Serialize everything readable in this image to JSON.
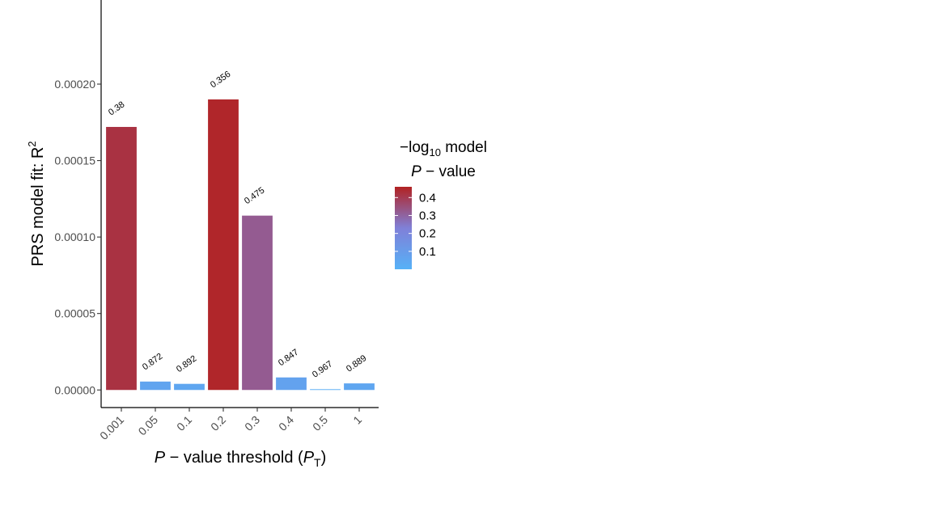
{
  "chart_data": {
    "type": "bar",
    "categories": [
      "0.001",
      "0.05",
      "0.1",
      "0.2",
      "0.3",
      "0.4",
      "0.5",
      "1"
    ],
    "values": [
      0.000172,
      5.5e-06,
      4e-06,
      0.00019,
      0.000114,
      8.2e-06,
      5e-07,
      4.3e-06
    ],
    "bar_labels": [
      "0.38",
      "0.872",
      "0.892",
      "0.356",
      "0.475",
      "0.847",
      "0.967",
      "0.889"
    ],
    "color_values": [
      0.42,
      0.06,
      0.05,
      0.45,
      0.32,
      0.07,
      0.015,
      0.05
    ],
    "ylim": [
      -1.15e-05,
      0.000255
    ],
    "yticks": [
      0,
      5e-05,
      0.0001,
      0.00015,
      0.0002
    ],
    "ytick_labels": [
      "0.00000",
      "0.00005",
      "0.00010",
      "0.00015",
      "0.00020"
    ],
    "ylabel_main": "PRS model fit:  R",
    "ylabel_sup": "2",
    "xlabel_prefix": "P",
    "xlabel_middle": " − value threshold (",
    "xlabel_sym": "P",
    "xlabel_sub": "T",
    "xlabel_suffix": ")",
    "legend": {
      "title_line1_prefix": "−log",
      "title_line1_sub": "10",
      "title_line1_suffix": " model",
      "title_line2_italic": "P",
      "title_line2_rest": " − value",
      "range": [
        0,
        0.46
      ],
      "ticks": [
        0.1,
        0.2,
        0.3,
        0.4
      ],
      "tick_labels": [
        "0.1",
        "0.2",
        "0.3",
        "0.4"
      ],
      "low_color": "#56B1F7",
      "mid_color": "#8080D8",
      "high_color": "#B22222",
      "placement": "right"
    },
    "grid": false
  }
}
